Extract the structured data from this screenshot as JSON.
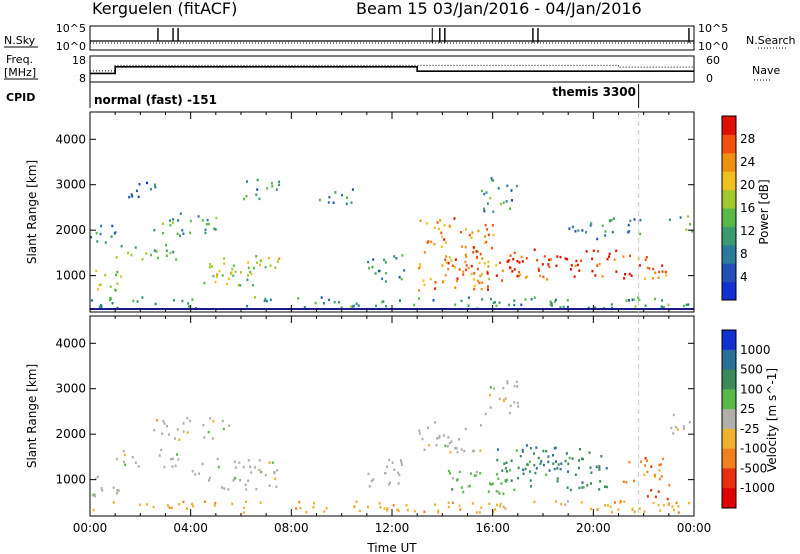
{
  "header": {
    "station": "Kerguelen (fitACF)",
    "beam_range": "Beam 15  03/Jan/2016 - 04/Jan/2016"
  },
  "noise_panel": {
    "left_label": "N.Sky",
    "right_label": "N.Search",
    "left_ticks": [
      "10^5",
      "10^0"
    ],
    "right_ticks": [
      "10^5",
      "10^0"
    ],
    "sky_spike_hours": [
      2.7,
      3.3,
      3.5,
      13.9,
      14.1,
      17.6,
      17.8,
      23.8
    ],
    "search_spike_hours": [
      13.6,
      13.9,
      14.1,
      17.6,
      17.8,
      23.8
    ],
    "sky_spike_level": 1,
    "search_spike_level": 1,
    "sky_base_level": 0.35,
    "search_base_level": 0.35
  },
  "freq_panel": {
    "left_label_top": "Freq.",
    "left_label_bottom": "[MHz]",
    "right_label": "Nave",
    "left_ticks": [
      "18",
      "8"
    ],
    "right_ticks": [
      "60",
      "0"
    ],
    "freq_steps": [
      {
        "from_hour": 0,
        "to_hour": 1,
        "mhz": 11
      },
      {
        "from_hour": 1,
        "to_hour": 13,
        "mhz": 14
      },
      {
        "from_hour": 13,
        "to_hour": 24,
        "mhz": 12
      }
    ],
    "nave_steps": [
      {
        "from_hour": 0,
        "to_hour": 1,
        "value": 25
      },
      {
        "from_hour": 1,
        "to_hour": 21,
        "value": 40
      },
      {
        "from_hour": 21,
        "to_hour": 24,
        "value": 35
      }
    ]
  },
  "cpid": {
    "label": "CPID",
    "modes": [
      {
        "name": "normal (fast) -151",
        "from_hour": 0,
        "to_hour": 21.8
      },
      {
        "name": "themis 3300",
        "from_hour": 21.8,
        "to_hour": 24
      }
    ]
  },
  "chart_data": [
    {
      "type": "heatmap",
      "name": "Power",
      "xlabel": "",
      "ylabel": "Slant Range [km]",
      "xlim_hours": [
        0,
        24
      ],
      "ylim": [
        200,
        4600
      ],
      "yticks": [
        "1000",
        "2000",
        "3000",
        "4000"
      ],
      "colorbar": {
        "label": "Power [dB]",
        "ticks": [
          "4",
          "8",
          "12",
          "16",
          "20",
          "24",
          "28"
        ],
        "range": [
          0,
          32
        ]
      },
      "echo_regions": [
        {
          "h0": 0.0,
          "h1": 1.2,
          "r0": 600,
          "r1": 1200,
          "level": 0.55
        },
        {
          "h0": 0.0,
          "h1": 1.0,
          "r0": 1700,
          "r1": 2300,
          "level": 0.3
        },
        {
          "h0": 1.0,
          "h1": 3.5,
          "r0": 1300,
          "r1": 1700,
          "level": 0.45
        },
        {
          "h0": 2.5,
          "h1": 5.5,
          "r0": 1900,
          "r1": 2400,
          "level": 0.35
        },
        {
          "h0": 4.0,
          "h1": 6.5,
          "r0": 800,
          "r1": 1300,
          "level": 0.5
        },
        {
          "h0": 5.0,
          "h1": 7.5,
          "r0": 1000,
          "r1": 1500,
          "level": 0.6
        },
        {
          "h0": 6.0,
          "h1": 7.5,
          "r0": 2700,
          "r1": 3200,
          "level": 0.3
        },
        {
          "h0": 1.5,
          "h1": 3.0,
          "r0": 2700,
          "r1": 3100,
          "level": 0.25
        },
        {
          "h0": 9.0,
          "h1": 10.5,
          "r0": 2600,
          "r1": 3000,
          "level": 0.3
        },
        {
          "h0": 11.0,
          "h1": 12.5,
          "r0": 800,
          "r1": 1500,
          "level": 0.3
        },
        {
          "h0": 13.0,
          "h1": 16.0,
          "r0": 700,
          "r1": 2300,
          "level": 0.75
        },
        {
          "h0": 14.0,
          "h1": 18.5,
          "r0": 900,
          "r1": 1500,
          "level": 0.85
        },
        {
          "h0": 16.5,
          "h1": 21.0,
          "r0": 1000,
          "r1": 1600,
          "level": 0.95
        },
        {
          "h0": 21.0,
          "h1": 23.0,
          "r0": 800,
          "r1": 1500,
          "level": 0.85
        },
        {
          "h0": 19.0,
          "h1": 22.0,
          "r0": 1800,
          "r1": 2300,
          "level": 0.3
        },
        {
          "h0": 15.5,
          "h1": 17.0,
          "r0": 2400,
          "r1": 3200,
          "level": 0.35
        },
        {
          "h0": 23.0,
          "h1": 24.0,
          "r0": 2000,
          "r1": 2500,
          "level": 0.45
        },
        {
          "h0": 0.0,
          "h1": 24.0,
          "r0": 300,
          "r1": 550,
          "level": 0.35
        }
      ]
    },
    {
      "type": "heatmap",
      "name": "Velocity",
      "xlabel": "Time UT",
      "ylabel": "Slant Range [km]",
      "xlim_hours": [
        0,
        24
      ],
      "ylim": [
        200,
        4600
      ],
      "yticks": [
        "1000",
        "2000",
        "3000",
        "4000"
      ],
      "xticks": [
        "00:00",
        "04:00",
        "08:00",
        "12:00",
        "16:00",
        "20:00",
        "00:00"
      ],
      "colorbar": {
        "label": "Velocity [m s^-1]",
        "ticks": [
          "1000",
          "500",
          "100",
          "25",
          "-25",
          "-100",
          "-500",
          "-1000"
        ],
        "colors": [
          "#1030d0",
          "#2a6f9a",
          "#3a8a5a",
          "#58b848",
          "#b0b0a8",
          "#f0b030",
          "#f08020",
          "#e83010",
          "#e00000"
        ]
      },
      "echo_regions": [
        {
          "h0": 0.0,
          "h1": 1.2,
          "r0": 600,
          "r1": 1200,
          "vel_class": 4
        },
        {
          "h0": 1.0,
          "h1": 3.5,
          "r0": 1300,
          "r1": 1700,
          "vel_class": 4
        },
        {
          "h0": 2.5,
          "h1": 5.5,
          "r0": 1900,
          "r1": 2400,
          "vel_class": 4
        },
        {
          "h0": 4.0,
          "h1": 7.5,
          "r0": 800,
          "r1": 1500,
          "vel_class": 4
        },
        {
          "h0": 11.0,
          "h1": 12.5,
          "r0": 800,
          "r1": 1500,
          "vel_class": 4
        },
        {
          "h0": 13.0,
          "h1": 15.5,
          "r0": 1600,
          "r1": 2300,
          "vel_class": 4
        },
        {
          "h0": 14.0,
          "h1": 17.0,
          "r0": 700,
          "r1": 1300,
          "vel_class": 3
        },
        {
          "h0": 16.0,
          "h1": 20.5,
          "r0": 800,
          "r1": 1700,
          "vel_class": 2
        },
        {
          "h0": 17.0,
          "h1": 19.0,
          "r0": 1200,
          "r1": 1800,
          "vel_class": 1
        },
        {
          "h0": 21.0,
          "h1": 23.0,
          "r0": 900,
          "r1": 1500,
          "vel_class": 6
        },
        {
          "h0": 22.0,
          "h1": 23.0,
          "r0": 500,
          "r1": 800,
          "vel_class": 7
        },
        {
          "h0": 15.5,
          "h1": 17.0,
          "r0": 2400,
          "r1": 3200,
          "vel_class": 4
        },
        {
          "h0": 23.0,
          "h1": 24.0,
          "r0": 2000,
          "r1": 2500,
          "vel_class": 4
        },
        {
          "h0": 0.0,
          "h1": 24.0,
          "r0": 300,
          "r1": 550,
          "vel_class": 5
        }
      ]
    }
  ],
  "marker_hour": 21.8,
  "colors": {
    "axis": "#000000",
    "marker_line": "#c8c8c8",
    "baseline": "#1a1a8a"
  },
  "power_colors": [
    "#1030d0",
    "#2050b8",
    "#2c7a9a",
    "#3c9a70",
    "#58b848",
    "#a0c830",
    "#f0c020",
    "#f09010",
    "#f05010",
    "#e01000"
  ]
}
